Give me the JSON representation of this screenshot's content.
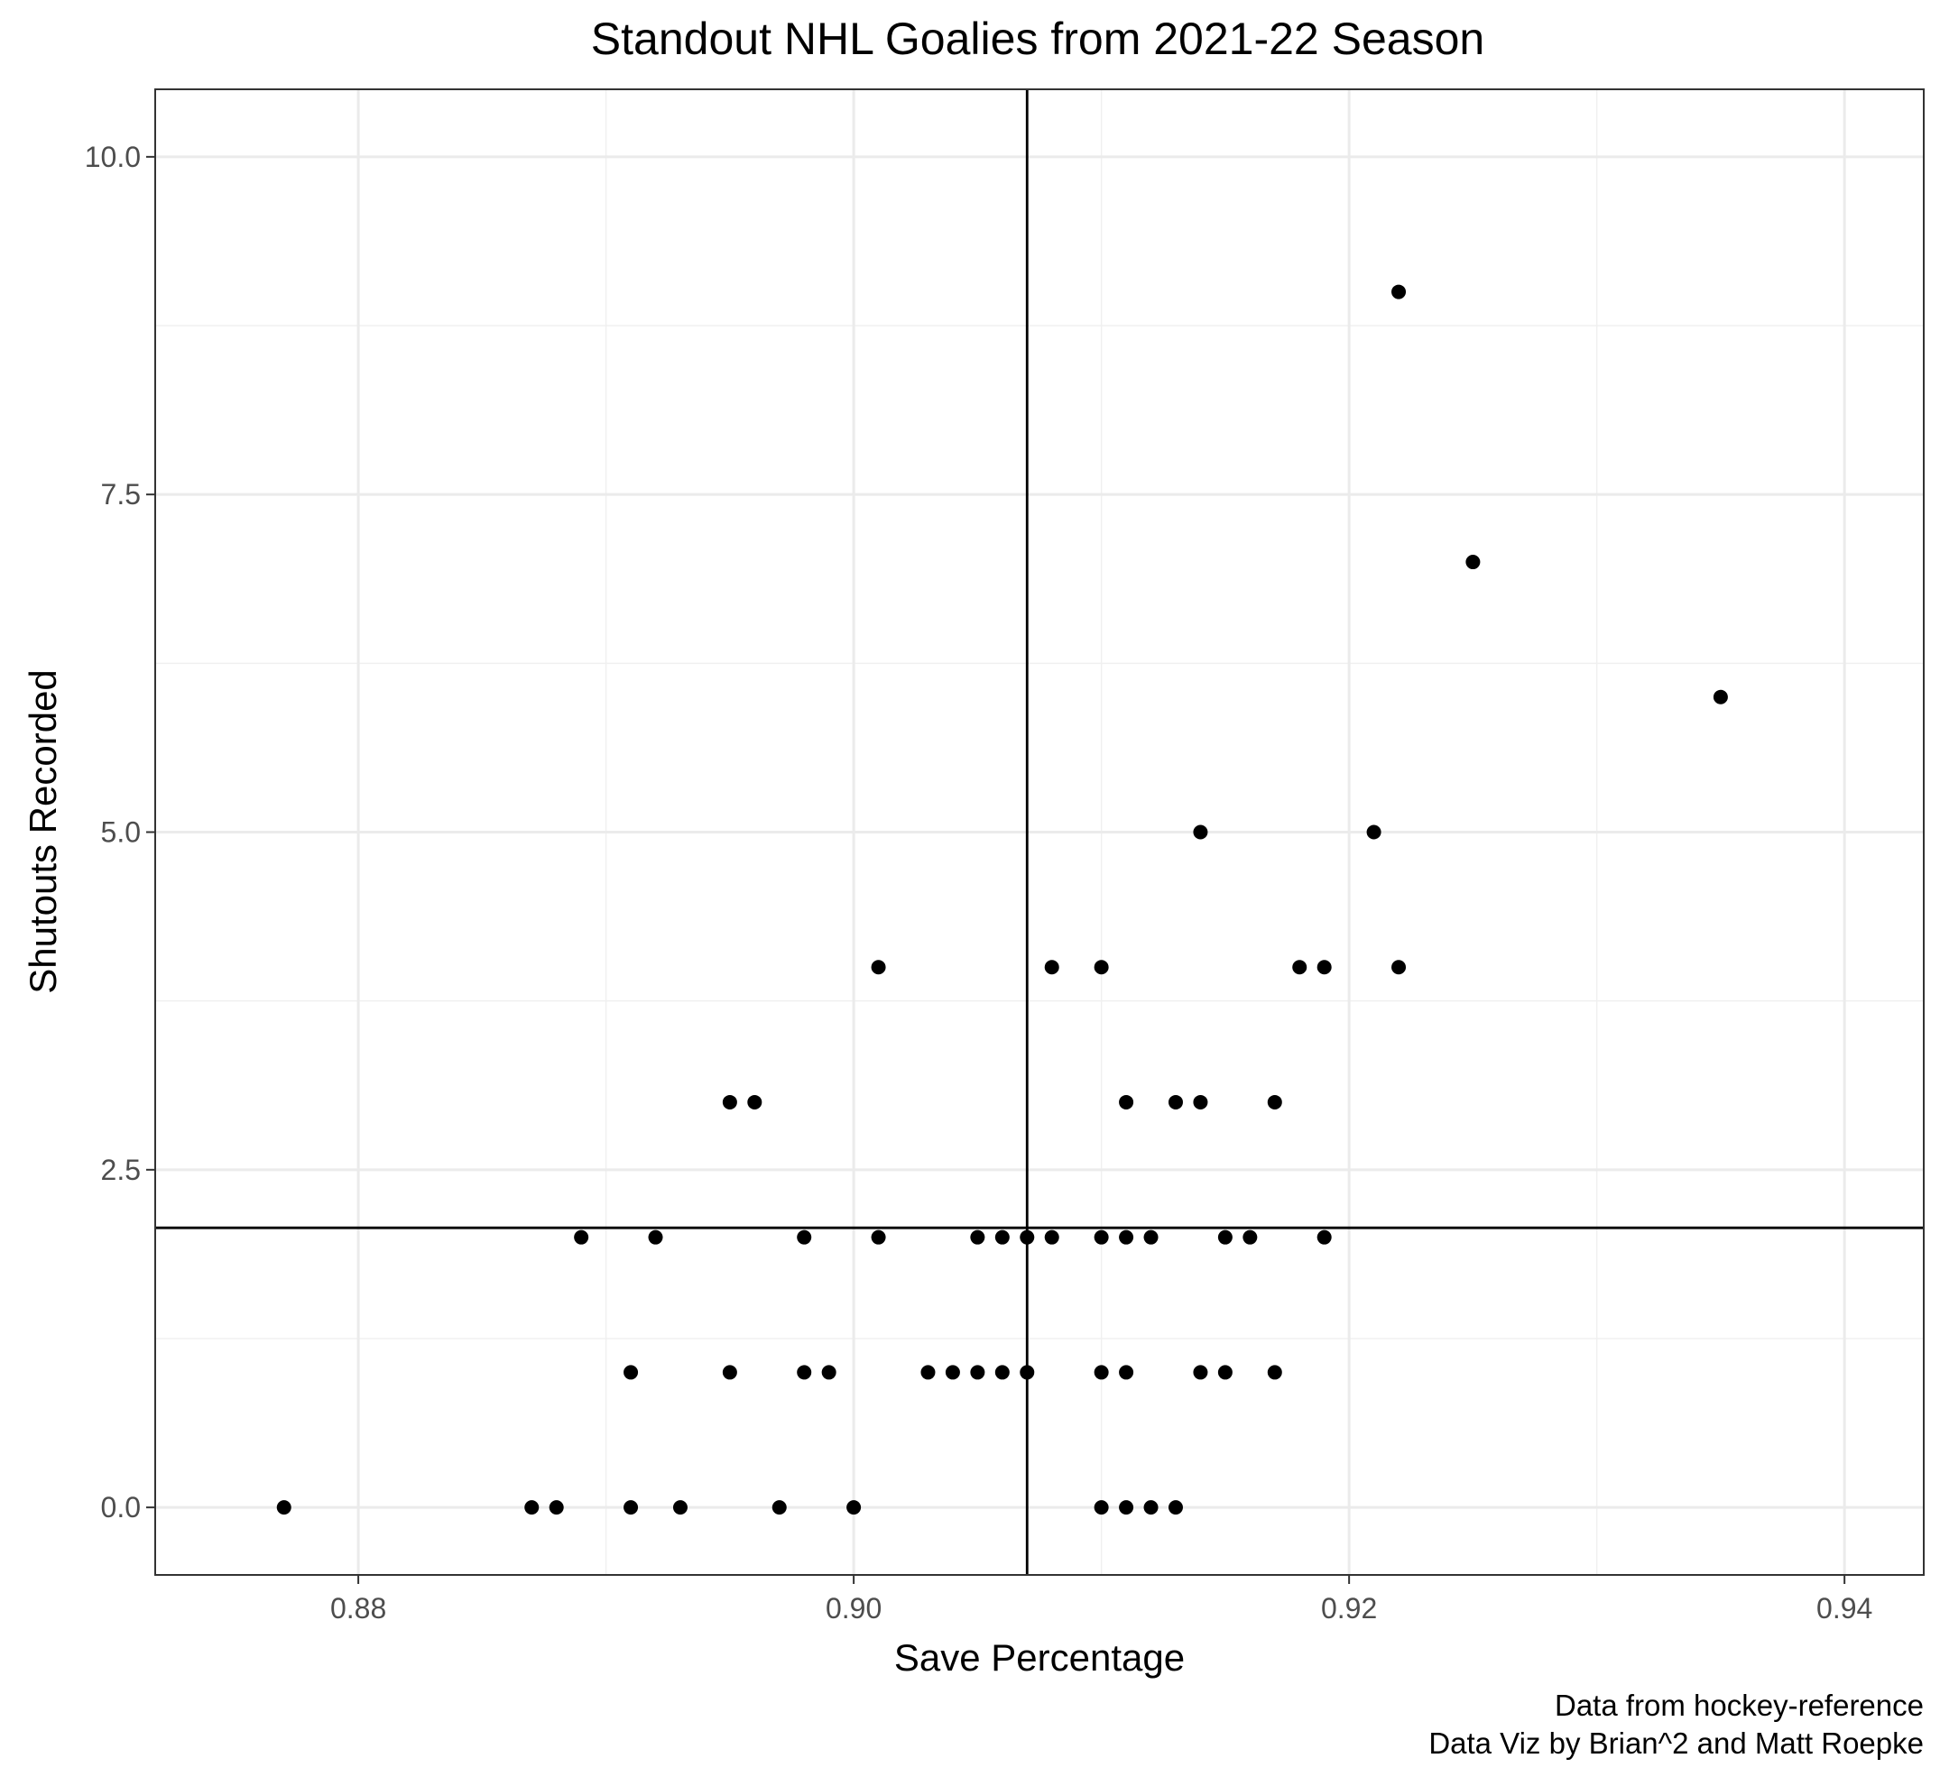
{
  "chart_data": {
    "type": "scatter",
    "title": "Standout NHL Goalies from 2021-22 Season",
    "xlabel": "Save Percentage",
    "ylabel": "Shutouts Recorded",
    "caption_lines": [
      "Data from hockey-reference",
      "Data Viz by Brian^2 and Matt Roepke"
    ],
    "xlim": [
      0.8718,
      0.9432
    ],
    "ylim": [
      -0.5,
      10.5
    ],
    "x_ticks": [
      0.88,
      0.9,
      0.92,
      0.94
    ],
    "x_tick_labels": [
      "0.88",
      "0.90",
      "0.92",
      "0.94"
    ],
    "y_ticks": [
      0.0,
      2.5,
      5.0,
      7.5,
      10.0
    ],
    "y_tick_labels": [
      "0.0",
      "2.5",
      "5.0",
      "7.5",
      "10.0"
    ],
    "grid": true,
    "reference_lines": {
      "vertical_x": 0.907,
      "horizontal_y": 2.07
    },
    "point_color": "#000000",
    "points": [
      {
        "x": 0.877,
        "y": 0
      },
      {
        "x": 0.887,
        "y": 0
      },
      {
        "x": 0.888,
        "y": 0
      },
      {
        "x": 0.891,
        "y": 0
      },
      {
        "x": 0.893,
        "y": 0
      },
      {
        "x": 0.897,
        "y": 0
      },
      {
        "x": 0.9,
        "y": 0
      },
      {
        "x": 0.91,
        "y": 0
      },
      {
        "x": 0.911,
        "y": 0
      },
      {
        "x": 0.912,
        "y": 0
      },
      {
        "x": 0.913,
        "y": 0
      },
      {
        "x": 0.891,
        "y": 1
      },
      {
        "x": 0.895,
        "y": 1
      },
      {
        "x": 0.898,
        "y": 1
      },
      {
        "x": 0.899,
        "y": 1
      },
      {
        "x": 0.903,
        "y": 1
      },
      {
        "x": 0.904,
        "y": 1
      },
      {
        "x": 0.905,
        "y": 1
      },
      {
        "x": 0.906,
        "y": 1
      },
      {
        "x": 0.907,
        "y": 1
      },
      {
        "x": 0.91,
        "y": 1
      },
      {
        "x": 0.911,
        "y": 1
      },
      {
        "x": 0.914,
        "y": 1
      },
      {
        "x": 0.915,
        "y": 1
      },
      {
        "x": 0.917,
        "y": 1
      },
      {
        "x": 0.889,
        "y": 2
      },
      {
        "x": 0.892,
        "y": 2
      },
      {
        "x": 0.898,
        "y": 2
      },
      {
        "x": 0.901,
        "y": 2
      },
      {
        "x": 0.905,
        "y": 2
      },
      {
        "x": 0.906,
        "y": 2
      },
      {
        "x": 0.907,
        "y": 2
      },
      {
        "x": 0.908,
        "y": 2
      },
      {
        "x": 0.91,
        "y": 2
      },
      {
        "x": 0.911,
        "y": 2
      },
      {
        "x": 0.912,
        "y": 2
      },
      {
        "x": 0.915,
        "y": 2
      },
      {
        "x": 0.916,
        "y": 2
      },
      {
        "x": 0.919,
        "y": 2
      },
      {
        "x": 0.895,
        "y": 3
      },
      {
        "x": 0.896,
        "y": 3
      },
      {
        "x": 0.911,
        "y": 3
      },
      {
        "x": 0.913,
        "y": 3
      },
      {
        "x": 0.914,
        "y": 3
      },
      {
        "x": 0.917,
        "y": 3
      },
      {
        "x": 0.901,
        "y": 4
      },
      {
        "x": 0.908,
        "y": 4
      },
      {
        "x": 0.91,
        "y": 4
      },
      {
        "x": 0.918,
        "y": 4
      },
      {
        "x": 0.919,
        "y": 4
      },
      {
        "x": 0.922,
        "y": 4
      },
      {
        "x": 0.914,
        "y": 5
      },
      {
        "x": 0.921,
        "y": 5
      },
      {
        "x": 0.935,
        "y": 6
      },
      {
        "x": 0.925,
        "y": 7
      },
      {
        "x": 0.922,
        "y": 9
      }
    ]
  }
}
